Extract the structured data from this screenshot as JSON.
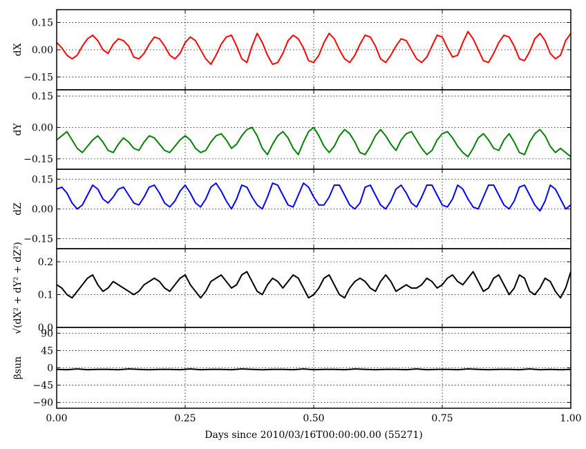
{
  "figure": {
    "xlabel": "Days since 2010/03/16T00:00:00.00 (55271)",
    "xlim": [
      0.0,
      1.0
    ],
    "x_tick_labels": [
      "0.00",
      "0.25",
      "0.50",
      "0.75",
      "1.00"
    ],
    "grid": true
  },
  "chart_data": [
    {
      "type": "line",
      "ylabel": "dX",
      "ylim": [
        -0.22,
        0.22
      ],
      "y_ticks": [
        -0.15,
        0.0,
        0.15
      ],
      "y_tick_labels": [
        "−0.15",
        "0.00",
        "0.15"
      ],
      "series": [
        {
          "color": "#ff0000",
          "x": [
            0.0,
            0.01,
            0.02,
            0.03,
            0.04,
            0.05,
            0.06,
            0.07,
            0.08,
            0.09,
            0.1,
            0.11,
            0.12,
            0.13,
            0.14,
            0.15,
            0.16,
            0.17,
            0.18,
            0.19,
            0.2,
            0.21,
            0.22,
            0.23,
            0.24,
            0.25,
            0.26,
            0.27,
            0.28,
            0.29,
            0.3,
            0.31,
            0.32,
            0.33,
            0.34,
            0.35,
            0.36,
            0.37,
            0.38,
            0.39,
            0.4,
            0.41,
            0.42,
            0.43,
            0.44,
            0.45,
            0.46,
            0.47,
            0.48,
            0.49,
            0.5,
            0.51,
            0.52,
            0.53,
            0.54,
            0.55,
            0.56,
            0.57,
            0.58,
            0.59,
            0.6,
            0.61,
            0.62,
            0.63,
            0.64,
            0.65,
            0.66,
            0.67,
            0.68,
            0.69,
            0.7,
            0.71,
            0.72,
            0.73,
            0.74,
            0.75,
            0.76,
            0.77,
            0.78,
            0.79,
            0.8,
            0.81,
            0.82,
            0.83,
            0.84,
            0.85,
            0.86,
            0.87,
            0.88,
            0.89,
            0.9,
            0.91,
            0.92,
            0.93,
            0.94,
            0.95,
            0.96,
            0.97,
            0.98,
            0.99,
            1.0
          ],
          "y": [
            0.04,
            0.01,
            -0.03,
            -0.05,
            -0.03,
            0.02,
            0.06,
            0.08,
            0.05,
            0.0,
            -0.02,
            0.03,
            0.06,
            0.05,
            0.02,
            -0.04,
            -0.05,
            -0.02,
            0.03,
            0.07,
            0.06,
            0.02,
            -0.03,
            -0.05,
            -0.02,
            0.04,
            0.07,
            0.05,
            0.0,
            -0.05,
            -0.08,
            -0.03,
            0.03,
            0.07,
            0.08,
            0.02,
            -0.05,
            -0.07,
            0.02,
            0.09,
            0.04,
            -0.03,
            -0.08,
            -0.07,
            -0.02,
            0.05,
            0.08,
            0.06,
            0.01,
            -0.06,
            -0.07,
            -0.03,
            0.04,
            0.09,
            0.06,
            0.0,
            -0.05,
            -0.07,
            -0.03,
            0.03,
            0.08,
            0.07,
            0.02,
            -0.05,
            -0.07,
            -0.03,
            0.02,
            0.06,
            0.05,
            0.0,
            -0.05,
            -0.07,
            -0.04,
            0.02,
            0.08,
            0.07,
            0.01,
            -0.04,
            -0.03,
            0.04,
            0.1,
            0.06,
            0.0,
            -0.06,
            -0.07,
            -0.02,
            0.04,
            0.08,
            0.07,
            0.02,
            -0.05,
            -0.06,
            -0.01,
            0.06,
            0.09,
            0.05,
            -0.02,
            -0.05,
            -0.03,
            0.05,
            0.09
          ]
        }
      ]
    },
    {
      "type": "line",
      "ylabel": "dY",
      "ylim": [
        -0.2,
        0.18
      ],
      "y_ticks": [
        -0.15,
        0.0,
        0.15
      ],
      "y_tick_labels": [
        "−0.15",
        "0.00",
        "0.15"
      ],
      "series": [
        {
          "color": "#008000",
          "x": [
            0.0,
            0.01,
            0.02,
            0.03,
            0.04,
            0.05,
            0.06,
            0.07,
            0.08,
            0.09,
            0.1,
            0.11,
            0.12,
            0.13,
            0.14,
            0.15,
            0.16,
            0.17,
            0.18,
            0.19,
            0.2,
            0.21,
            0.22,
            0.23,
            0.24,
            0.25,
            0.26,
            0.27,
            0.28,
            0.29,
            0.3,
            0.31,
            0.32,
            0.33,
            0.34,
            0.35,
            0.36,
            0.37,
            0.38,
            0.39,
            0.4,
            0.41,
            0.42,
            0.43,
            0.44,
            0.45,
            0.46,
            0.47,
            0.48,
            0.49,
            0.5,
            0.51,
            0.52,
            0.53,
            0.54,
            0.55,
            0.56,
            0.57,
            0.58,
            0.59,
            0.6,
            0.61,
            0.62,
            0.63,
            0.64,
            0.65,
            0.66,
            0.67,
            0.68,
            0.69,
            0.7,
            0.71,
            0.72,
            0.73,
            0.74,
            0.75,
            0.76,
            0.77,
            0.78,
            0.79,
            0.8,
            0.81,
            0.82,
            0.83,
            0.84,
            0.85,
            0.86,
            0.87,
            0.88,
            0.89,
            0.9,
            0.91,
            0.92,
            0.93,
            0.94,
            0.95,
            0.96,
            0.97,
            0.98,
            0.99,
            1.0
          ],
          "y": [
            -0.06,
            -0.04,
            -0.02,
            -0.06,
            -0.1,
            -0.12,
            -0.09,
            -0.06,
            -0.04,
            -0.07,
            -0.11,
            -0.12,
            -0.08,
            -0.05,
            -0.07,
            -0.1,
            -0.11,
            -0.07,
            -0.04,
            -0.05,
            -0.08,
            -0.11,
            -0.12,
            -0.09,
            -0.06,
            -0.04,
            -0.06,
            -0.1,
            -0.12,
            -0.11,
            -0.07,
            -0.04,
            -0.03,
            -0.06,
            -0.1,
            -0.08,
            -0.04,
            -0.01,
            0.0,
            -0.04,
            -0.1,
            -0.13,
            -0.08,
            -0.04,
            -0.02,
            -0.05,
            -0.1,
            -0.13,
            -0.07,
            -0.02,
            0.0,
            -0.04,
            -0.09,
            -0.12,
            -0.09,
            -0.04,
            -0.01,
            -0.03,
            -0.07,
            -0.12,
            -0.13,
            -0.09,
            -0.04,
            -0.01,
            -0.04,
            -0.08,
            -0.11,
            -0.06,
            -0.03,
            -0.02,
            -0.06,
            -0.1,
            -0.13,
            -0.11,
            -0.06,
            -0.03,
            -0.02,
            -0.05,
            -0.09,
            -0.12,
            -0.14,
            -0.1,
            -0.05,
            -0.03,
            -0.06,
            -0.1,
            -0.11,
            -0.06,
            -0.03,
            -0.07,
            -0.12,
            -0.13,
            -0.07,
            -0.03,
            -0.01,
            -0.04,
            -0.09,
            -0.12,
            -0.1,
            -0.12,
            -0.14
          ]
        }
      ]
    },
    {
      "type": "line",
      "ylabel": "dZ",
      "ylim": [
        -0.2,
        0.2
      ],
      "y_ticks": [
        -0.15,
        0.0,
        0.15
      ],
      "y_tick_labels": [
        "−0.15",
        "0.00",
        "0.15"
      ],
      "series": [
        {
          "color": "#0000ff",
          "x": [
            0.0,
            0.01,
            0.02,
            0.03,
            0.04,
            0.05,
            0.06,
            0.07,
            0.08,
            0.09,
            0.1,
            0.11,
            0.12,
            0.13,
            0.14,
            0.15,
            0.16,
            0.17,
            0.18,
            0.19,
            0.2,
            0.21,
            0.22,
            0.23,
            0.24,
            0.25,
            0.26,
            0.27,
            0.28,
            0.29,
            0.3,
            0.31,
            0.32,
            0.33,
            0.34,
            0.35,
            0.36,
            0.37,
            0.38,
            0.39,
            0.4,
            0.41,
            0.42,
            0.43,
            0.44,
            0.45,
            0.46,
            0.47,
            0.48,
            0.49,
            0.5,
            0.51,
            0.52,
            0.53,
            0.54,
            0.55,
            0.56,
            0.57,
            0.58,
            0.59,
            0.6,
            0.61,
            0.62,
            0.63,
            0.64,
            0.65,
            0.66,
            0.67,
            0.68,
            0.69,
            0.7,
            0.71,
            0.72,
            0.73,
            0.74,
            0.75,
            0.76,
            0.77,
            0.78,
            0.79,
            0.8,
            0.81,
            0.82,
            0.83,
            0.84,
            0.85,
            0.86,
            0.87,
            0.88,
            0.89,
            0.9,
            0.91,
            0.92,
            0.93,
            0.94,
            0.95,
            0.96,
            0.97,
            0.98,
            0.99,
            1.0
          ],
          "y": [
            0.1,
            0.11,
            0.08,
            0.03,
            0.0,
            0.02,
            0.07,
            0.12,
            0.1,
            0.05,
            0.03,
            0.06,
            0.1,
            0.11,
            0.07,
            0.03,
            0.02,
            0.06,
            0.11,
            0.12,
            0.08,
            0.03,
            0.01,
            0.04,
            0.09,
            0.12,
            0.08,
            0.03,
            0.01,
            0.05,
            0.11,
            0.13,
            0.09,
            0.04,
            0.0,
            0.05,
            0.12,
            0.11,
            0.06,
            0.02,
            0.0,
            0.06,
            0.13,
            0.12,
            0.07,
            0.02,
            0.01,
            0.07,
            0.13,
            0.11,
            0.06,
            0.02,
            0.02,
            0.06,
            0.12,
            0.12,
            0.07,
            0.02,
            0.0,
            0.03,
            0.11,
            0.12,
            0.07,
            0.02,
            0.0,
            0.04,
            0.1,
            0.12,
            0.08,
            0.03,
            0.01,
            0.06,
            0.12,
            0.12,
            0.07,
            0.02,
            0.01,
            0.05,
            0.12,
            0.1,
            0.05,
            0.01,
            0.0,
            0.06,
            0.12,
            0.12,
            0.07,
            0.02,
            0.0,
            0.04,
            0.11,
            0.12,
            0.07,
            0.02,
            -0.01,
            0.04,
            0.12,
            0.1,
            0.05,
            0.0,
            0.02
          ]
        }
      ]
    },
    {
      "type": "line",
      "ylabel": "√(dX² + dY² + dZ²)",
      "ylim": [
        0.0,
        0.24
      ],
      "y_ticks": [
        0.0,
        0.1,
        0.2
      ],
      "y_tick_labels": [
        "0.0",
        "0.1",
        "0.2"
      ],
      "series": [
        {
          "color": "#000000",
          "x": [
            0.0,
            0.01,
            0.02,
            0.03,
            0.04,
            0.05,
            0.06,
            0.07,
            0.08,
            0.09,
            0.1,
            0.11,
            0.12,
            0.13,
            0.14,
            0.15,
            0.16,
            0.17,
            0.18,
            0.19,
            0.2,
            0.21,
            0.22,
            0.23,
            0.24,
            0.25,
            0.26,
            0.27,
            0.28,
            0.29,
            0.3,
            0.31,
            0.32,
            0.33,
            0.34,
            0.35,
            0.36,
            0.37,
            0.38,
            0.39,
            0.4,
            0.41,
            0.42,
            0.43,
            0.44,
            0.45,
            0.46,
            0.47,
            0.48,
            0.49,
            0.5,
            0.51,
            0.52,
            0.53,
            0.54,
            0.55,
            0.56,
            0.57,
            0.58,
            0.59,
            0.6,
            0.61,
            0.62,
            0.63,
            0.64,
            0.65,
            0.66,
            0.67,
            0.68,
            0.69,
            0.7,
            0.71,
            0.72,
            0.73,
            0.74,
            0.75,
            0.76,
            0.77,
            0.78,
            0.79,
            0.8,
            0.81,
            0.82,
            0.83,
            0.84,
            0.85,
            0.86,
            0.87,
            0.88,
            0.89,
            0.9,
            0.91,
            0.92,
            0.93,
            0.94,
            0.95,
            0.96,
            0.97,
            0.98,
            0.99,
            1.0
          ],
          "y": [
            0.13,
            0.12,
            0.1,
            0.09,
            0.11,
            0.13,
            0.15,
            0.16,
            0.13,
            0.11,
            0.12,
            0.14,
            0.13,
            0.12,
            0.11,
            0.1,
            0.11,
            0.13,
            0.14,
            0.15,
            0.14,
            0.12,
            0.11,
            0.13,
            0.15,
            0.16,
            0.13,
            0.11,
            0.09,
            0.11,
            0.14,
            0.15,
            0.16,
            0.14,
            0.12,
            0.13,
            0.16,
            0.17,
            0.14,
            0.11,
            0.1,
            0.13,
            0.15,
            0.14,
            0.12,
            0.14,
            0.16,
            0.15,
            0.12,
            0.09,
            0.1,
            0.12,
            0.15,
            0.16,
            0.13,
            0.1,
            0.09,
            0.12,
            0.14,
            0.15,
            0.14,
            0.12,
            0.11,
            0.14,
            0.16,
            0.14,
            0.11,
            0.12,
            0.13,
            0.12,
            0.12,
            0.13,
            0.15,
            0.14,
            0.12,
            0.13,
            0.15,
            0.16,
            0.14,
            0.13,
            0.15,
            0.17,
            0.14,
            0.11,
            0.12,
            0.15,
            0.16,
            0.13,
            0.1,
            0.12,
            0.16,
            0.15,
            0.11,
            0.1,
            0.12,
            0.15,
            0.14,
            0.11,
            0.09,
            0.12,
            0.17
          ]
        }
      ]
    },
    {
      "type": "line",
      "ylabel": "βsun",
      "ylim": [
        -105,
        105
      ],
      "y_ticks": [
        -90,
        -45,
        0,
        45,
        90
      ],
      "y_tick_labels": [
        "−90",
        "−45",
        "0",
        "45",
        "90"
      ],
      "series": [
        {
          "color": "#000000",
          "x": [
            0.0,
            0.02,
            0.04,
            0.06,
            0.08,
            0.1,
            0.12,
            0.14,
            0.16,
            0.18,
            0.2,
            0.22,
            0.24,
            0.26,
            0.28,
            0.3,
            0.32,
            0.34,
            0.36,
            0.38,
            0.4,
            0.42,
            0.44,
            0.46,
            0.48,
            0.5,
            0.52,
            0.54,
            0.56,
            0.58,
            0.6,
            0.62,
            0.64,
            0.66,
            0.68,
            0.7,
            0.72,
            0.74,
            0.76,
            0.78,
            0.8,
            0.82,
            0.84,
            0.86,
            0.88,
            0.9,
            0.92,
            0.94,
            0.96,
            0.98,
            1.0
          ],
          "y": [
            -4,
            -5,
            -3,
            -5,
            -4,
            -4,
            -5,
            -3,
            -4,
            -5,
            -4,
            -4,
            -5,
            -3,
            -5,
            -4,
            -4,
            -5,
            -3,
            -4,
            -5,
            -4,
            -4,
            -5,
            -3,
            -5,
            -4,
            -4,
            -5,
            -3,
            -4,
            -5,
            -4,
            -4,
            -5,
            -3,
            -5,
            -4,
            -4,
            -5,
            -3,
            -4,
            -5,
            -4,
            -4,
            -5,
            -3,
            -5,
            -4,
            -5,
            -4
          ]
        }
      ]
    }
  ]
}
